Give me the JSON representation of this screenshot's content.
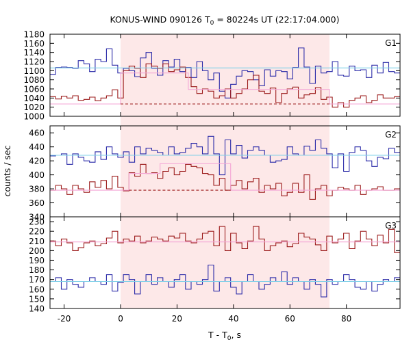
{
  "chart_data": {
    "type": "line",
    "title": {
      "prefix": "KONUS-WIND 090126 T",
      "sub": "0",
      "suffix": " = 80224s UT (22:17:04.000)"
    },
    "xlabel": {
      "prefix": "T - T",
      "sub": "0",
      "suffix": ", s"
    },
    "ylabel": "counts / sec",
    "xlim": [
      -25,
      99
    ],
    "xticks": [
      -20,
      0,
      20,
      40,
      60,
      80
    ],
    "shaded_interval": [
      0,
      74
    ],
    "grid": false,
    "colors": {
      "blue": "#2a2aa8",
      "red": "#9b1a1a",
      "pink": "#f4a6d6",
      "cyan": "#7fd0e8",
      "shade": "#fde8e8"
    },
    "panels": [
      {
        "label": "G1",
        "ylim": [
          1000,
          1180
        ],
        "yticks": [
          1000,
          1020,
          1040,
          1060,
          1080,
          1100,
          1120,
          1140,
          1160,
          1180
        ],
        "bin_edges": [
          -25,
          -23,
          -21,
          -19,
          -17,
          -15,
          -13,
          -11,
          -9,
          -7,
          -5,
          -3,
          -1,
          1,
          3,
          5,
          7,
          9,
          11,
          13,
          15,
          17,
          19,
          21,
          23,
          25,
          27,
          29,
          31,
          33,
          35,
          37,
          39,
          41,
          43,
          45,
          47,
          49,
          51,
          53,
          55,
          57,
          59,
          61,
          63,
          65,
          67,
          69,
          71,
          73,
          75,
          77,
          79,
          81,
          83,
          85,
          87,
          89,
          91,
          93,
          95,
          97,
          99
        ],
        "series": [
          {
            "color": "blue",
            "values": [
              1092,
              1107,
              1108,
              1107,
              1105,
              1122,
              1115,
              1098,
              1125,
              1120,
              1148,
              1112,
              1095,
              1105,
              1100,
              1087,
              1128,
              1140,
              1105,
              1090,
              1122,
              1108,
              1125,
              1098,
              1107,
              1085,
              1120,
              1100,
              1080,
              1095,
              1055,
              1040,
              1070,
              1088,
              1100,
              1098,
              1080,
              1067,
              1102,
              1088,
              1100,
              1098,
              1082,
              1107,
              1150,
              1108,
              1072,
              1110,
              1095,
              1098,
              1120,
              1090,
              1088,
              1110,
              1100,
              1102,
              1085,
              1112,
              1095,
              1118,
              1098,
              1095
            ]
          },
          {
            "color": "red",
            "values": [
              1043,
              1038,
              1044,
              1040,
              1045,
              1035,
              1037,
              1042,
              1034,
              1040,
              1045,
              1058,
              1040,
              1100,
              1110,
              1105,
              1085,
              1115,
              1110,
              1105,
              1115,
              1098,
              1102,
              1108,
              1085,
              1065,
              1050,
              1060,
              1055,
              1040,
              1045,
              1060,
              1040,
              1050,
              1060,
              1080,
              1090,
              1055,
              1050,
              1062,
              1030,
              1050,
              1060,
              1064,
              1040,
              1047,
              1050,
              1063,
              1037,
              1042,
              1020,
              1030,
              1020,
              1035,
              1040,
              1045,
              1030,
              1035,
              1047,
              1040,
              1040,
              1043
            ]
          }
        ],
        "fits": [
          {
            "color": "cyan",
            "style": "solid",
            "points": [
              [
                -25,
                1106
              ],
              [
                99,
                1106
              ]
            ]
          },
          {
            "color": "pink",
            "style": "solid",
            "points": [
              [
                -25,
                1027
              ],
              [
                0,
                1027
              ],
              [
                0,
                1095
              ],
              [
                24,
                1095
              ],
              [
                24,
                1059
              ],
              [
                74,
                1059
              ],
              [
                74,
                1027
              ],
              [
                99,
                1027
              ]
            ]
          },
          {
            "color": "red",
            "style": "dashed",
            "points": [
              [
                0,
                1027
              ],
              [
                74,
                1027
              ]
            ]
          }
        ]
      },
      {
        "label": "G2",
        "ylim": [
          340,
          470
        ],
        "yticks": [
          340,
          360,
          380,
          400,
          420,
          440,
          460
        ],
        "bin_edges": [
          -25,
          -23,
          -21,
          -19,
          -17,
          -15,
          -13,
          -11,
          -9,
          -7,
          -5,
          -3,
          -1,
          1,
          3,
          5,
          7,
          9,
          11,
          13,
          15,
          17,
          19,
          21,
          23,
          25,
          27,
          29,
          31,
          33,
          35,
          37,
          39,
          41,
          43,
          45,
          47,
          49,
          51,
          53,
          55,
          57,
          59,
          61,
          63,
          65,
          67,
          69,
          71,
          73,
          75,
          77,
          79,
          81,
          83,
          85,
          87,
          89,
          91,
          93,
          95,
          97,
          99
        ],
        "series": [
          {
            "color": "blue",
            "values": [
              427,
              428,
              430,
              415,
              430,
              425,
              420,
              418,
              433,
              422,
              440,
              430,
              425,
              433,
              418,
              440,
              430,
              438,
              435,
              432,
              428,
              440,
              430,
              432,
              438,
              445,
              440,
              430,
              455,
              430,
              400,
              450,
              430,
              442,
              424,
              435,
              440,
              435,
              428,
              418,
              420,
              422,
              440,
              430,
              428,
              441,
              435,
              450,
              438,
              430,
              410,
              430,
              405,
              432,
              440,
              435,
              420,
              412,
              425,
              423,
              438,
              432
            ]
          },
          {
            "color": "red",
            "values": [
              378,
              385,
              380,
              372,
              385,
              380,
              375,
              390,
              382,
              392,
              380,
              398,
              382,
              377,
              403,
              398,
              415,
              402,
              403,
              395,
              405,
              410,
              400,
              405,
              415,
              412,
              410,
              402,
              400,
              385,
              395,
              378,
              385,
              392,
              380,
              390,
              395,
              375,
              385,
              380,
              388,
              370,
              375,
              388,
              375,
              400,
              365,
              380,
              385,
              370,
              378,
              382,
              380,
              378,
              385,
              372,
              378,
              380,
              383,
              378,
              378,
              380
            ]
          }
        ],
        "fits": [
          {
            "color": "cyan",
            "style": "solid",
            "points": [
              [
                -25,
                428
              ],
              [
                99,
                428
              ]
            ]
          },
          {
            "color": "pink",
            "style": "solid",
            "points": [
              [
                -25,
                378
              ],
              [
                3,
                378
              ],
              [
                3,
                402
              ],
              [
                14,
                402
              ],
              [
                14,
                416
              ],
              [
                39,
                416
              ],
              [
                39,
                378
              ],
              [
                99,
                378
              ]
            ]
          },
          {
            "color": "red",
            "style": "dashed",
            "points": [
              [
                3,
                378
              ],
              [
                39,
                378
              ]
            ]
          }
        ]
      },
      {
        "label": "G3",
        "ylim": [
          140,
          235
        ],
        "yticks": [
          140,
          150,
          160,
          170,
          180,
          190,
          200,
          210,
          220,
          230
        ],
        "bin_edges": [
          -25,
          -23,
          -21,
          -19,
          -17,
          -15,
          -13,
          -11,
          -9,
          -7,
          -5,
          -3,
          -1,
          1,
          3,
          5,
          7,
          9,
          11,
          13,
          15,
          17,
          19,
          21,
          23,
          25,
          27,
          29,
          31,
          33,
          35,
          37,
          39,
          41,
          43,
          45,
          47,
          49,
          51,
          53,
          55,
          57,
          59,
          61,
          63,
          65,
          67,
          69,
          71,
          73,
          75,
          77,
          79,
          81,
          83,
          85,
          87,
          89,
          91,
          93,
          95,
          97,
          99
        ],
        "series": [
          {
            "color": "blue",
            "values": [
              168,
              172,
              160,
              170,
              165,
              162,
              168,
              172,
              168,
              165,
              175,
              158,
              167,
              175,
              170,
              155,
              168,
              175,
              165,
              172,
              168,
              162,
              170,
              175,
              160,
              168,
              165,
              170,
              185,
              158,
              168,
              172,
              162,
              155,
              168,
              175,
              168,
              160,
              165,
              172,
              168,
              178,
              165,
              172,
              168,
              160,
              170,
              165,
              152,
              170,
              165,
              168,
              175,
              170,
              162,
              160,
              168,
              158,
              165,
              170,
              168,
              172
            ]
          },
          {
            "color": "red",
            "values": [
              210,
              205,
              212,
              208,
              200,
              203,
              208,
              210,
              205,
              207,
              213,
              220,
              208,
              212,
              210,
              215,
              208,
              210,
              214,
              212,
              210,
              215,
              213,
              218,
              210,
              208,
              212,
              218,
              220,
              205,
              225,
              200,
              218,
              208,
              202,
              210,
              225,
              212,
              200,
              205,
              208,
              210,
              204,
              207,
              218,
              214,
              212,
              206,
              200,
              215,
              208,
              212,
              218,
              202,
              210,
              220,
              212,
              205,
              216,
              208,
              222,
              198
            ]
          }
        ],
        "fits": [
          {
            "color": "pink",
            "style": "solid",
            "points": [
              [
                -25,
                209
              ],
              [
                99,
                209
              ]
            ]
          },
          {
            "color": "cyan",
            "style": "solid",
            "points": [
              [
                -25,
                168
              ],
              [
                99,
                168
              ]
            ]
          }
        ]
      }
    ]
  }
}
